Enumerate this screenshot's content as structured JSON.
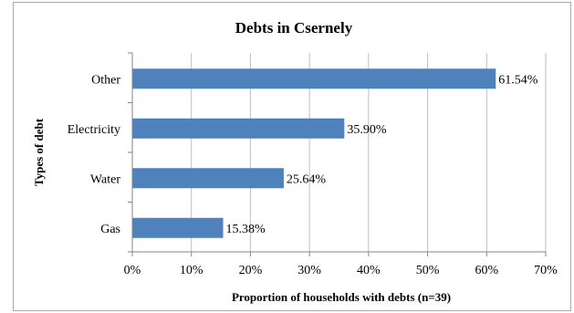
{
  "chart_data": {
    "type": "bar",
    "orientation": "horizontal",
    "title": "Debts in Csernely",
    "xlabel": "Proportion of households with debts (n=39)",
    "ylabel": "Types of debt",
    "categories": [
      "Other",
      "Electricity",
      "Water",
      "Gas"
    ],
    "values": [
      61.54,
      35.9,
      25.64,
      15.38
    ],
    "value_labels": [
      "61.54%",
      "35.90%",
      "25.64%",
      "15.38%"
    ],
    "xlim": [
      0,
      70
    ],
    "xticks": [
      0,
      10,
      20,
      30,
      40,
      50,
      60,
      70
    ],
    "xtick_labels": [
      "0%",
      "10%",
      "20%",
      "30%",
      "40%",
      "50%",
      "60%",
      "70%"
    ],
    "grid": "vertical",
    "legend": "none",
    "bar_color": "#4f81bd"
  }
}
